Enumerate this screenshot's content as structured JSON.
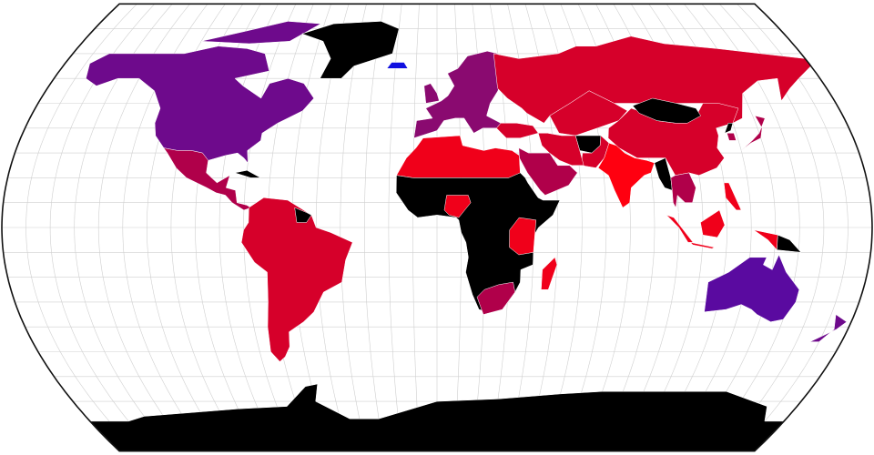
{
  "map": {
    "projection": "Natural Earth",
    "graticule_step_degrees": 10,
    "colors": {
      "background": "#ffffff",
      "graticule": "#cfcfcf",
      "outline": "#111111",
      "no_data": "#000000",
      "purple": "#5a0aa0",
      "violet": "#6e0a8c",
      "magenta": "#8a0a70",
      "crimson": "#b0004a",
      "red": "#d6002a",
      "bright_red": "#f0001a",
      "scarlet": "#ff0010",
      "blue": "#1010e0"
    },
    "regions": [
      {
        "id": "north-america",
        "color": "violet"
      },
      {
        "id": "arctic-islands",
        "color": "violet"
      },
      {
        "id": "greenland",
        "color": "no_data"
      },
      {
        "id": "iceland",
        "color": "blue"
      },
      {
        "id": "mexico-central-america",
        "color": "crimson"
      },
      {
        "id": "cuba",
        "color": "no_data"
      },
      {
        "id": "south-america",
        "color": "red"
      },
      {
        "id": "guianas",
        "color": "no_data"
      },
      {
        "id": "europe",
        "color": "magenta"
      },
      {
        "id": "uk",
        "color": "magenta"
      },
      {
        "id": "russia",
        "color": "red"
      },
      {
        "id": "kazakhstan",
        "color": "red"
      },
      {
        "id": "china",
        "color": "red"
      },
      {
        "id": "mongolia",
        "color": "no_data"
      },
      {
        "id": "india",
        "color": "scarlet"
      },
      {
        "id": "pakistan",
        "color": "red"
      },
      {
        "id": "afghanistan",
        "color": "no_data"
      },
      {
        "id": "iran",
        "color": "red"
      },
      {
        "id": "turkey",
        "color": "red"
      },
      {
        "id": "arabia",
        "color": "crimson"
      },
      {
        "id": "north-africa",
        "color": "bright_red"
      },
      {
        "id": "sub-saharan-africa",
        "color": "no_data"
      },
      {
        "id": "nigeria",
        "color": "bright_red"
      },
      {
        "id": "east-africa",
        "color": "bright_red"
      },
      {
        "id": "southern-africa",
        "color": "crimson"
      },
      {
        "id": "madagascar",
        "color": "bright_red"
      },
      {
        "id": "myanmar",
        "color": "no_data"
      },
      {
        "id": "indochina",
        "color": "crimson"
      },
      {
        "id": "sumatra",
        "color": "bright_red"
      },
      {
        "id": "borneo",
        "color": "bright_red"
      },
      {
        "id": "java",
        "color": "bright_red"
      },
      {
        "id": "west-papua",
        "color": "bright_red"
      },
      {
        "id": "papua-new-guinea",
        "color": "no_data"
      },
      {
        "id": "philippines",
        "color": "bright_red"
      },
      {
        "id": "japan",
        "color": "crimson"
      },
      {
        "id": "north-korea",
        "color": "no_data"
      },
      {
        "id": "south-korea",
        "color": "crimson"
      },
      {
        "id": "australia",
        "color": "purple"
      },
      {
        "id": "new-zealand",
        "color": "violet"
      },
      {
        "id": "antarctica",
        "color": "no_data"
      }
    ]
  }
}
